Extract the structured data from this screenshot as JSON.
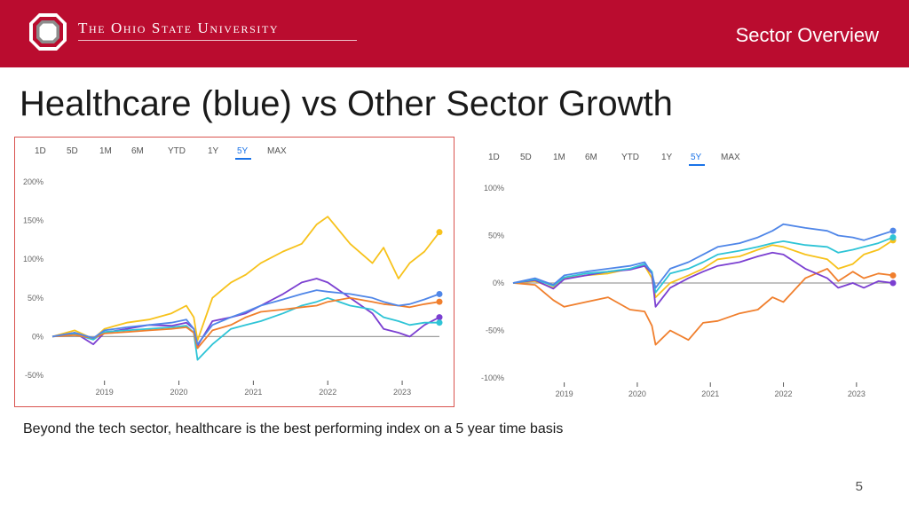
{
  "header": {
    "university": "The Ohio State University",
    "section": "Sector Overview"
  },
  "slide": {
    "title": "Healthcare (blue) vs Other Sector Growth",
    "caption": "Beyond the tech sector, healthcare is the best performing index on a 5 year time basis",
    "page_number": "5"
  },
  "colors": {
    "brand": "#ba0c2f",
    "blue": "#4f86e8",
    "orange": "#f07f2d",
    "yellow": "#f7c21b",
    "cyan": "#2ec4d6",
    "purple": "#7b3fd1",
    "zero_line": "#9e9e9e"
  },
  "chart_data": [
    {
      "type": "line",
      "range_buttons": [
        "1D",
        "5D",
        "1M",
        "6M",
        "YTD",
        "1Y",
        "5Y",
        "MAX"
      ],
      "selected_range": "5Y",
      "x_ticks": [
        "2019",
        "2020",
        "2021",
        "2022",
        "2023"
      ],
      "y_ticks": [
        "200%",
        "150%",
        "100%",
        "50%",
        "0%",
        "-50%"
      ],
      "ylim": [
        -50,
        200
      ],
      "xlim": [
        2018.3,
        2023.5
      ],
      "series": [
        {
          "color_key": "yellow",
          "x": [
            2018.3,
            2018.6,
            2018.85,
            2019.0,
            2019.3,
            2019.6,
            2019.9,
            2020.1,
            2020.2,
            2020.25,
            2020.45,
            2020.7,
            2020.9,
            2021.1,
            2021.4,
            2021.65,
            2021.85,
            2022.0,
            2022.3,
            2022.6,
            2022.75,
            2022.95,
            2023.1,
            2023.3,
            2023.5
          ],
          "y": [
            0,
            8,
            -3,
            10,
            18,
            22,
            30,
            40,
            25,
            -5,
            50,
            70,
            80,
            95,
            110,
            120,
            145,
            155,
            120,
            95,
            115,
            75,
            95,
            110,
            135
          ]
        },
        {
          "color_key": "purple",
          "x": [
            2018.3,
            2018.6,
            2018.85,
            2019.0,
            2019.3,
            2019.6,
            2019.9,
            2020.1,
            2020.2,
            2020.25,
            2020.45,
            2020.7,
            2020.9,
            2021.1,
            2021.4,
            2021.65,
            2021.85,
            2022.0,
            2022.3,
            2022.6,
            2022.75,
            2022.95,
            2023.1,
            2023.3,
            2023.5
          ],
          "y": [
            0,
            5,
            -10,
            5,
            10,
            15,
            14,
            18,
            10,
            -12,
            20,
            25,
            30,
            40,
            55,
            70,
            75,
            70,
            50,
            30,
            10,
            5,
            0,
            15,
            25
          ]
        },
        {
          "color_key": "cyan",
          "x": [
            2018.3,
            2018.6,
            2018.85,
            2019.0,
            2019.3,
            2019.6,
            2019.9,
            2020.1,
            2020.2,
            2020.25,
            2020.45,
            2020.7,
            2020.9,
            2021.1,
            2021.4,
            2021.65,
            2021.85,
            2022.0,
            2022.3,
            2022.6,
            2022.75,
            2022.95,
            2023.1,
            2023.3,
            2023.5
          ],
          "y": [
            0,
            3,
            -4,
            6,
            8,
            10,
            12,
            14,
            5,
            -30,
            -10,
            10,
            15,
            20,
            30,
            40,
            45,
            50,
            40,
            35,
            25,
            20,
            15,
            18,
            18
          ]
        },
        {
          "color_key": "orange",
          "x": [
            2018.3,
            2018.6,
            2018.85,
            2019.0,
            2019.3,
            2019.6,
            2019.9,
            2020.1,
            2020.2,
            2020.25,
            2020.45,
            2020.7,
            2020.9,
            2021.1,
            2021.4,
            2021.65,
            2021.85,
            2022.0,
            2022.3,
            2022.6,
            2022.75,
            2022.95,
            2023.1,
            2023.3,
            2023.5
          ],
          "y": [
            0,
            2,
            -2,
            4,
            6,
            8,
            10,
            12,
            5,
            -15,
            8,
            15,
            25,
            32,
            35,
            38,
            40,
            45,
            50,
            45,
            42,
            40,
            38,
            42,
            45
          ]
        },
        {
          "color_key": "blue",
          "x": [
            2018.3,
            2018.6,
            2018.85,
            2019.0,
            2019.3,
            2019.6,
            2019.9,
            2020.1,
            2020.2,
            2020.25,
            2020.45,
            2020.7,
            2020.9,
            2021.1,
            2021.4,
            2021.65,
            2021.85,
            2022.0,
            2022.3,
            2022.6,
            2022.75,
            2022.95,
            2023.1,
            2023.3,
            2023.5
          ],
          "y": [
            0,
            5,
            -2,
            8,
            12,
            15,
            18,
            22,
            10,
            -10,
            15,
            25,
            32,
            40,
            48,
            55,
            60,
            58,
            55,
            50,
            45,
            40,
            42,
            48,
            55
          ]
        }
      ]
    },
    {
      "type": "line",
      "range_buttons": [
        "1D",
        "5D",
        "1M",
        "6M",
        "YTD",
        "1Y",
        "5Y",
        "MAX"
      ],
      "selected_range": "5Y",
      "x_ticks": [
        "2019",
        "2020",
        "2021",
        "2022",
        "2023"
      ],
      "y_ticks": [
        "100%",
        "50%",
        "0%",
        "-50%",
        "-100%"
      ],
      "ylim": [
        -100,
        100
      ],
      "xlim": [
        2018.3,
        2023.5
      ],
      "series": [
        {
          "color_key": "orange",
          "x": [
            2018.3,
            2018.6,
            2018.85,
            2019.0,
            2019.3,
            2019.6,
            2019.9,
            2020.1,
            2020.2,
            2020.25,
            2020.45,
            2020.7,
            2020.9,
            2021.1,
            2021.4,
            2021.65,
            2021.85,
            2022.0,
            2022.3,
            2022.6,
            2022.75,
            2022.95,
            2023.1,
            2023.3,
            2023.5
          ],
          "y": [
            0,
            -2,
            -18,
            -25,
            -20,
            -15,
            -28,
            -30,
            -45,
            -65,
            -50,
            -60,
            -42,
            -40,
            -32,
            -28,
            -15,
            -20,
            5,
            15,
            2,
            12,
            5,
            10,
            8
          ]
        },
        {
          "color_key": "yellow",
          "x": [
            2018.3,
            2018.6,
            2018.85,
            2019.0,
            2019.3,
            2019.6,
            2019.9,
            2020.1,
            2020.2,
            2020.25,
            2020.45,
            2020.7,
            2020.9,
            2021.1,
            2021.4,
            2021.65,
            2021.85,
            2022.0,
            2022.3,
            2022.6,
            2022.75,
            2022.95,
            2023.1,
            2023.3,
            2023.5
          ],
          "y": [
            0,
            2,
            -5,
            5,
            8,
            10,
            15,
            18,
            5,
            -15,
            0,
            8,
            15,
            25,
            28,
            35,
            40,
            38,
            30,
            25,
            15,
            20,
            30,
            35,
            45
          ]
        },
        {
          "color_key": "purple",
          "x": [
            2018.3,
            2018.6,
            2018.85,
            2019.0,
            2019.3,
            2019.6,
            2019.9,
            2020.1,
            2020.2,
            2020.25,
            2020.45,
            2020.7,
            2020.9,
            2021.1,
            2021.4,
            2021.65,
            2021.85,
            2022.0,
            2022.3,
            2022.6,
            2022.75,
            2022.95,
            2023.1,
            2023.3,
            2023.5
          ],
          "y": [
            0,
            3,
            -6,
            4,
            8,
            12,
            14,
            18,
            10,
            -25,
            -5,
            5,
            12,
            18,
            22,
            28,
            32,
            30,
            15,
            5,
            -5,
            0,
            -5,
            2,
            0
          ]
        },
        {
          "color_key": "cyan",
          "x": [
            2018.3,
            2018.6,
            2018.85,
            2019.0,
            2019.3,
            2019.6,
            2019.9,
            2020.1,
            2020.2,
            2020.25,
            2020.45,
            2020.7,
            2020.9,
            2021.1,
            2021.4,
            2021.65,
            2021.85,
            2022.0,
            2022.3,
            2022.6,
            2022.75,
            2022.95,
            2023.1,
            2023.3,
            2023.5
          ],
          "y": [
            0,
            4,
            -3,
            6,
            10,
            12,
            15,
            20,
            12,
            -10,
            10,
            15,
            22,
            30,
            34,
            38,
            42,
            44,
            40,
            38,
            32,
            35,
            38,
            42,
            48
          ]
        },
        {
          "color_key": "blue",
          "x": [
            2018.3,
            2018.6,
            2018.85,
            2019.0,
            2019.3,
            2019.6,
            2019.9,
            2020.1,
            2020.2,
            2020.25,
            2020.45,
            2020.7,
            2020.9,
            2021.1,
            2021.4,
            2021.65,
            2021.85,
            2022.0,
            2022.3,
            2022.6,
            2022.75,
            2022.95,
            2023.1,
            2023.3,
            2023.5
          ],
          "y": [
            0,
            5,
            -2,
            8,
            12,
            15,
            18,
            22,
            10,
            -5,
            15,
            22,
            30,
            38,
            42,
            48,
            55,
            62,
            58,
            55,
            50,
            48,
            45,
            50,
            55
          ]
        }
      ]
    }
  ]
}
